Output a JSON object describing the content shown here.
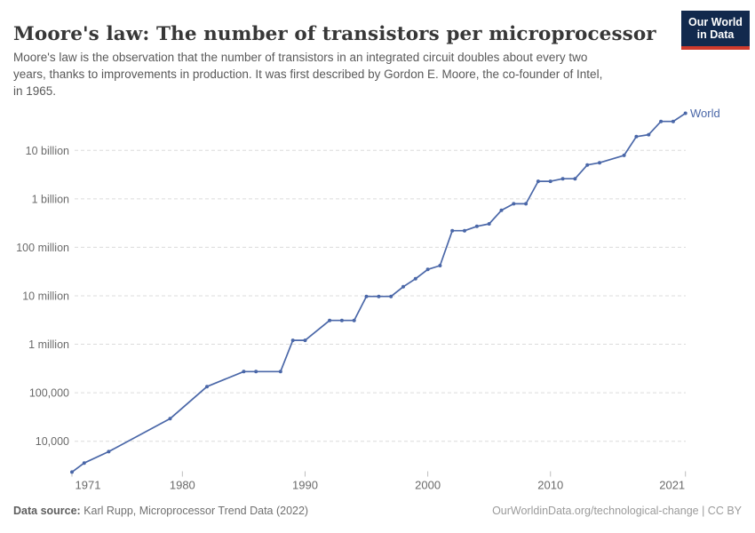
{
  "header": {
    "title": "Moore's law: The number of transistors per microprocessor",
    "subtitle_lines": [
      "Moore's law is the observation that the number of transistors in an integrated circuit doubles about every two",
      "years, thanks to improvements in production. It was first described by Gordon E. Moore, the co-founder of Intel,",
      "in 1965."
    ],
    "logo": {
      "line1": "Our World",
      "line2": "in Data"
    }
  },
  "chart_data": {
    "type": "line",
    "title": "Moore's law: The number of transistors per microprocessor",
    "series": [
      {
        "name": "World",
        "points": [
          [
            1971,
            2308
          ],
          [
            1972,
            3555
          ],
          [
            1974,
            6098
          ],
          [
            1979,
            29161
          ],
          [
            1982,
            134119
          ],
          [
            1985,
            273842
          ],
          [
            1986,
            273842
          ],
          [
            1988,
            273842
          ],
          [
            1989,
            1207359
          ],
          [
            1990,
            1207359
          ],
          [
            1992,
            3103065
          ],
          [
            1993,
            3103065
          ],
          [
            1994,
            3103065
          ],
          [
            1995,
            9707522
          ],
          [
            1996,
            9707522
          ],
          [
            1997,
            9707522
          ],
          [
            1998,
            15400000
          ],
          [
            1999,
            22500000
          ],
          [
            2000,
            35000000
          ],
          [
            2001,
            42000000
          ],
          [
            2002,
            220000000
          ],
          [
            2003,
            220000000
          ],
          [
            2004,
            271000000
          ],
          [
            2005,
            305000000
          ],
          [
            2006,
            580000000
          ],
          [
            2007,
            790000000
          ],
          [
            2008,
            790000000
          ],
          [
            2009,
            2300000000
          ],
          [
            2010,
            2300000000
          ],
          [
            2011,
            2600000000
          ],
          [
            2012,
            2600000000
          ],
          [
            2013,
            5000000000
          ],
          [
            2014,
            5560000000
          ],
          [
            2016,
            7900000000
          ],
          [
            2017,
            19200000000
          ],
          [
            2018,
            21100000000
          ],
          [
            2019,
            39540000000
          ],
          [
            2020,
            39540000000
          ],
          [
            2021,
            58200000000
          ]
        ]
      }
    ],
    "series_label": "World",
    "y_scale": "log10",
    "xlim": [
      1971,
      2021
    ],
    "ylim": [
      10000,
      10000000000
    ],
    "grid": "dashed-horizontal",
    "legend_position": "end-of-line",
    "y_ticks": [
      {
        "value": 10000,
        "label": "10,000"
      },
      {
        "value": 100000,
        "label": "100,000"
      },
      {
        "value": 1000000,
        "label": "1 million"
      },
      {
        "value": 10000000,
        "label": "10 million"
      },
      {
        "value": 100000000,
        "label": "100 million"
      },
      {
        "value": 1000000000,
        "label": "1 billion"
      },
      {
        "value": 10000000000,
        "label": "10 billion"
      }
    ],
    "x_ticks": [
      {
        "year": 1971,
        "label": "1971",
        "label_shift": 18
      },
      {
        "year": 1980,
        "label": "1980",
        "label_shift": 0
      },
      {
        "year": 1990,
        "label": "1990",
        "label_shift": 0
      },
      {
        "year": 2000,
        "label": "2000",
        "label_shift": 0
      },
      {
        "year": 2010,
        "label": "2010",
        "label_shift": 0
      },
      {
        "year": 2021,
        "label": "2021",
        "label_shift": -15
      }
    ],
    "colors": {
      "line": "#4a67a8",
      "grid": "#dcdcdc",
      "tick_mark": "#bdbdbd",
      "axis_text": "#6b6b6b"
    }
  },
  "footer": {
    "source_label": "Data source:",
    "source_value": " Karl Rupp, Microprocessor Trend Data (2022)",
    "right": "OurWorldinData.org/technological-change | CC BY"
  }
}
